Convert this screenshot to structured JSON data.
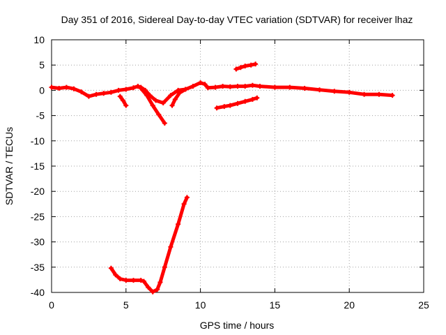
{
  "chart_data": {
    "type": "scatter",
    "title": "Day 351 of 2016, Sidereal Day-to-day VTEC variation (SDTVAR) for receiver lhaz",
    "xlabel": "GPS time / hours",
    "ylabel": "SDTVAR / TECUs",
    "xlim": [
      0,
      25
    ],
    "ylim": [
      -40,
      10
    ],
    "xticks": [
      0,
      5,
      10,
      15,
      20,
      25
    ],
    "yticks": [
      10,
      5,
      0,
      -5,
      -10,
      -15,
      -20,
      -25,
      -30,
      -35,
      -40
    ],
    "grid": true,
    "color": "#ff0000",
    "series": [
      {
        "name": "main-trace",
        "points": [
          [
            0.0,
            0.6
          ],
          [
            0.5,
            0.4
          ],
          [
            1.0,
            0.6
          ],
          [
            1.5,
            0.3
          ],
          [
            2.0,
            -0.3
          ],
          [
            2.5,
            -1.2
          ],
          [
            3.0,
            -0.8
          ],
          [
            3.5,
            -0.6
          ],
          [
            4.0,
            -0.4
          ],
          [
            4.5,
            0.0
          ],
          [
            5.0,
            0.2
          ],
          [
            5.5,
            0.5
          ],
          [
            5.8,
            0.8
          ],
          [
            6.0,
            0.6
          ],
          [
            6.3,
            0.0
          ],
          [
            6.6,
            -1.0
          ],
          [
            7.0,
            -2.0
          ],
          [
            7.5,
            -2.5
          ],
          [
            8.0,
            -1.0
          ],
          [
            8.5,
            0.0
          ],
          [
            9.0,
            0.2
          ],
          [
            9.5,
            0.8
          ],
          [
            10.0,
            1.5
          ],
          [
            10.3,
            1.2
          ],
          [
            10.5,
            0.5
          ],
          [
            11.0,
            0.6
          ],
          [
            11.5,
            0.8
          ],
          [
            12.0,
            0.7
          ],
          [
            12.5,
            0.8
          ],
          [
            13.0,
            0.8
          ],
          [
            13.5,
            1.0
          ],
          [
            14.0,
            0.8
          ],
          [
            15.0,
            0.6
          ],
          [
            16.0,
            0.6
          ],
          [
            17.0,
            0.4
          ],
          [
            18.0,
            0.1
          ],
          [
            19.0,
            -0.2
          ],
          [
            20.0,
            -0.4
          ],
          [
            21.0,
            -0.8
          ],
          [
            22.0,
            -0.8
          ],
          [
            22.9,
            -1.0
          ]
        ]
      },
      {
        "name": "drop-near-5h",
        "points": [
          [
            4.6,
            -1.2
          ],
          [
            4.8,
            -2.0
          ],
          [
            5.0,
            -3.0
          ]
        ]
      },
      {
        "name": "descent-6-8h",
        "points": [
          [
            6.0,
            0.4
          ],
          [
            6.4,
            -1.0
          ],
          [
            6.8,
            -3.0
          ],
          [
            7.2,
            -4.8
          ],
          [
            7.6,
            -6.5
          ]
        ]
      },
      {
        "name": "spike-8h",
        "points": [
          [
            8.1,
            -3.0
          ],
          [
            8.3,
            -1.8
          ],
          [
            8.6,
            -0.5
          ],
          [
            9.0,
            0.2
          ]
        ]
      },
      {
        "name": "upper-arc-12-14h",
        "points": [
          [
            12.4,
            4.2
          ],
          [
            12.7,
            4.5
          ],
          [
            13.0,
            4.8
          ],
          [
            13.4,
            5.0
          ],
          [
            13.7,
            5.2
          ]
        ]
      },
      {
        "name": "lower-line-11-14h",
        "points": [
          [
            11.1,
            -3.5
          ],
          [
            11.6,
            -3.2
          ],
          [
            12.0,
            -3.0
          ],
          [
            12.5,
            -2.6
          ],
          [
            13.0,
            -2.2
          ],
          [
            13.5,
            -1.8
          ],
          [
            13.8,
            -1.5
          ]
        ]
      },
      {
        "name": "deep-trough",
        "points": [
          [
            4.0,
            -35.2
          ],
          [
            4.3,
            -36.5
          ],
          [
            4.6,
            -37.3
          ],
          [
            5.0,
            -37.6
          ],
          [
            5.5,
            -37.6
          ],
          [
            6.0,
            -37.6
          ],
          [
            6.2,
            -37.8
          ],
          [
            6.5,
            -39.0
          ],
          [
            6.8,
            -39.9
          ],
          [
            7.1,
            -39.4
          ],
          [
            7.3,
            -38.0
          ],
          [
            7.6,
            -35.0
          ],
          [
            8.0,
            -31.0
          ],
          [
            8.5,
            -26.5
          ],
          [
            8.9,
            -22.5
          ],
          [
            9.1,
            -21.2
          ]
        ]
      }
    ]
  }
}
